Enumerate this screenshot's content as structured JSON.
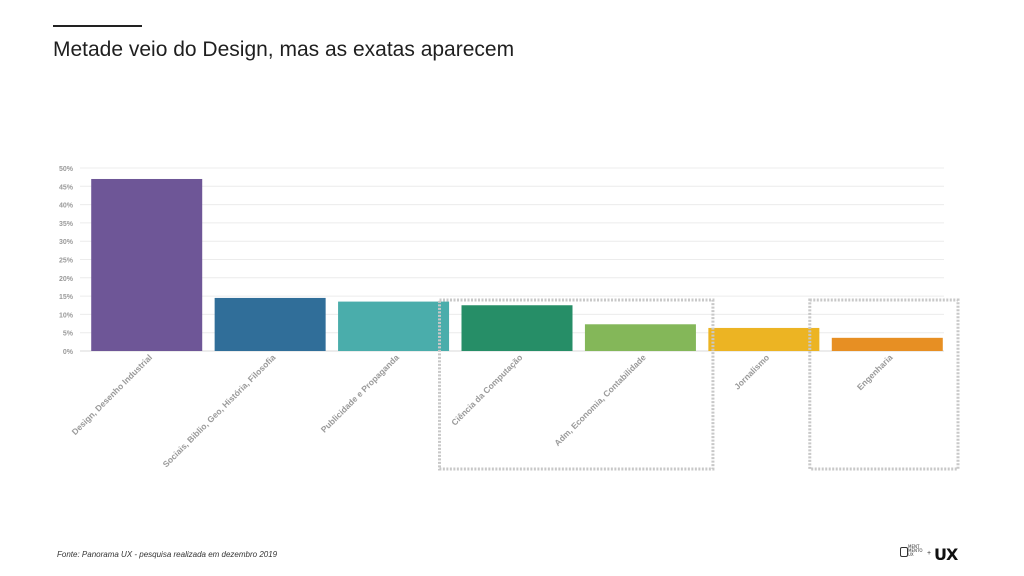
{
  "header": {
    "title": "Metade veio do Design, mas as exatas aparecem"
  },
  "footer": {
    "source": "Fonte: Panorama UX - pesquisa realizada em dezembro 2019",
    "logo_small_lines": [
      "MENT",
      "MENTO",
      "UX"
    ],
    "logo_plus": "+",
    "logo_big": "UX"
  },
  "chart_data": {
    "type": "bar",
    "categories": [
      "Design, Desenho Industrial",
      "Sociais, Biblio, Geo, História, Filosofia",
      "Publicidade e Propaganda",
      "Ciência da Computação",
      "Adm, Economia, Contabilidade",
      "Jornalismo",
      "Engenharia"
    ],
    "values": [
      47,
      14.5,
      13.5,
      12.5,
      7.3,
      6.3,
      3.6
    ],
    "colors": [
      "#6e5697",
      "#306e99",
      "#4aadab",
      "#268e67",
      "#84b759",
      "#ecb423",
      "#e78f23"
    ],
    "yticks": [
      "0%",
      "5%",
      "10%",
      "15%",
      "20%",
      "25%",
      "30%",
      "35%",
      "40%",
      "45%",
      "50%"
    ],
    "ylim": [
      0,
      50
    ],
    "grid": true,
    "highlight_groups": [
      {
        "categories": [
          "Ciência da Computação",
          "Adm, Economia, Contabilidade"
        ]
      },
      {
        "categories": [
          "Engenharia"
        ]
      }
    ]
  }
}
